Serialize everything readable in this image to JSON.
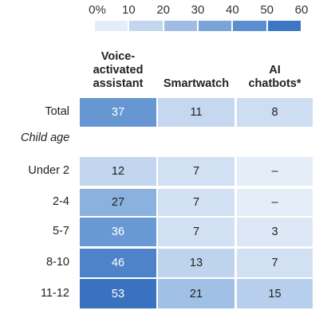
{
  "chart_data": {
    "type": "heatmap",
    "scale": {
      "min": 0,
      "max": 60,
      "ticks": [
        "0%",
        "10",
        "20",
        "30",
        "40",
        "50",
        "60"
      ],
      "colors": [
        "#e5eef8",
        "#c2d6ef",
        "#9fbde4",
        "#7aa3d8",
        "#5b8fd0",
        "#3d77c3"
      ]
    },
    "columns": [
      "Voice-\nactivated\nassistant",
      "Smartwatch",
      "AI\nchatbots*"
    ],
    "group_label": "Child age",
    "rows": [
      {
        "label": "Total",
        "values": [
          37,
          11,
          8
        ],
        "display": [
          "37",
          "11",
          "8"
        ]
      },
      {
        "label": "Under 2",
        "values": [
          12,
          7,
          null
        ],
        "display": [
          "12",
          "7",
          "–"
        ]
      },
      {
        "label": "2-4",
        "values": [
          27,
          7,
          null
        ],
        "display": [
          "27",
          "7",
          "–"
        ]
      },
      {
        "label": "5-7",
        "values": [
          36,
          7,
          3
        ],
        "display": [
          "36",
          "7",
          "3"
        ]
      },
      {
        "label": "8-10",
        "values": [
          46,
          13,
          7
        ],
        "display": [
          "46",
          "13",
          "7"
        ]
      },
      {
        "label": "11-12",
        "values": [
          53,
          21,
          15
        ],
        "display": [
          "53",
          "21",
          "15"
        ]
      }
    ]
  }
}
